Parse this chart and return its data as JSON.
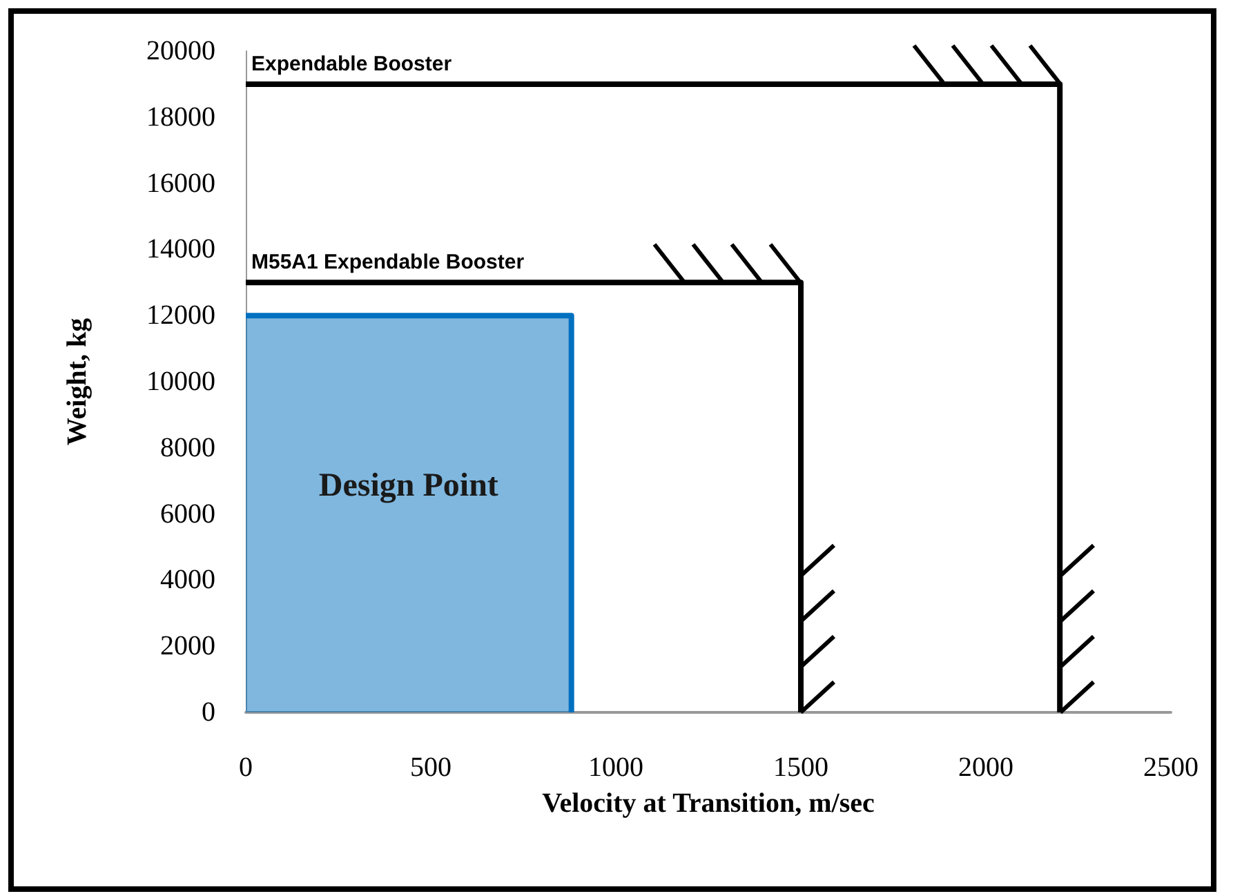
{
  "chart_data": {
    "type": "line",
    "xlabel": "Velocity at Transition, m/sec",
    "ylabel": "Weight, kg",
    "xlim": [
      0,
      2500
    ],
    "xticks": [
      0,
      500,
      1000,
      1500,
      2000,
      2500
    ],
    "ylim": [
      0,
      20000
    ],
    "yticks": [
      0,
      2000,
      4000,
      6000,
      8000,
      10000,
      12000,
      14000,
      16000,
      18000,
      20000
    ],
    "grid": false,
    "legend": false,
    "marker": "none",
    "annotations": [
      "Design Point"
    ],
    "series": [
      {
        "type": "area",
        "color": "#0070c0",
        "x": [
          0,
          880,
          880
        ],
        "values": [
          12000,
          12000,
          0
        ]
      },
      {
        "name": "M55A1 Expendable Booster",
        "color": "#000000",
        "x": [
          0,
          1500,
          1500
        ],
        "values": [
          13000,
          13000,
          0
        ]
      },
      {
        "name": "Expendable Booster",
        "color": "#000000",
        "x": [
          0,
          2200,
          2200
        ],
        "values": [
          19000,
          19000,
          0
        ]
      }
    ]
  }
}
